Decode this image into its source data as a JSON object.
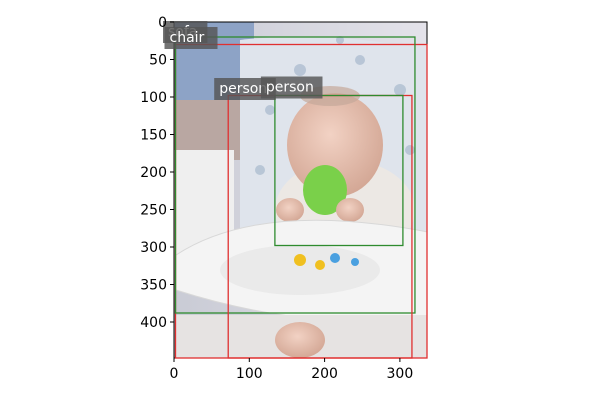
{
  "chart_data": {
    "type": "image-annotation",
    "image": {
      "description_semantic": "baby-in-high-chair-photo",
      "width": 336,
      "height": 448
    },
    "axes": {
      "xlim": [
        0,
        336
      ],
      "ylim": [
        448,
        0
      ],
      "xticks": [
        0,
        100,
        200,
        300
      ],
      "yticks": [
        0,
        50,
        100,
        150,
        200,
        250,
        300,
        350,
        400
      ]
    },
    "boxes": [
      {
        "label": "sofa",
        "color": "#e03030",
        "x1": 2,
        "y1": 30,
        "x2": 336,
        "y2": 448,
        "label_x": 0,
        "label_y": 0
      },
      {
        "label": "chair",
        "color": "#2e8b2e",
        "x1": 2,
        "y1": 20,
        "x2": 320,
        "y2": 388,
        "label_x": 2,
        "label_y": 8
      },
      {
        "label": "person",
        "color": "#e03030",
        "x1": 72,
        "y1": 98,
        "x2": 316,
        "y2": 448,
        "label_x": 68,
        "label_y": 76
      },
      {
        "label": "person",
        "color": "#2e8b2e",
        "x1": 134,
        "y1": 98,
        "x2": 304,
        "y2": 298,
        "label_x": 130,
        "label_y": 74
      }
    ]
  }
}
